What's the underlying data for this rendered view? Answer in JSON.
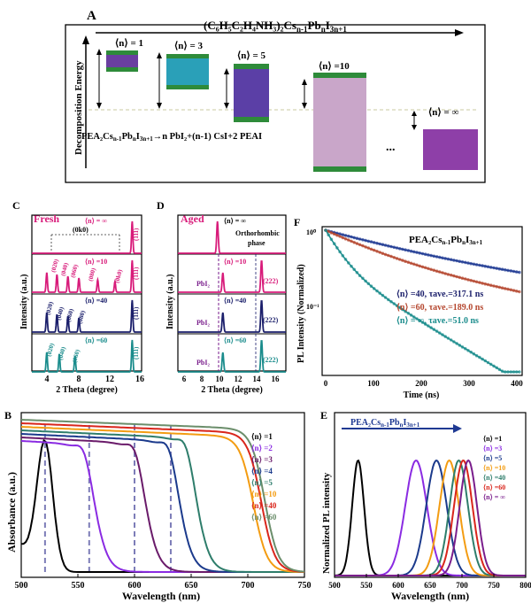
{
  "colors": {
    "black": "#000000",
    "blue": "#1f3a93",
    "navy": "#1b1f6b",
    "red": "#d9261c",
    "pink": "#d81b7a",
    "purple": "#7a1e8c",
    "teal": "#1a8c8c",
    "orange": "#f39c12",
    "green": "#2e8b57",
    "gray_green": "#6b8e6b",
    "dash": "#7d7db8"
  },
  "panelA": {
    "label": "A",
    "formula": "(C₆H₅C₂H₄NH₃)₂Cs",
    "formula_sub": "n-1",
    "formula_mid": "Pb",
    "formula_sub2": "n",
    "formula_tail": "I",
    "formula_sub3": "3n+1",
    "yaxis": "Decomposition Energy",
    "n_labels": [
      "⟨n⟩ = 1",
      "⟨n⟩ = 3",
      "⟨n⟩ = 5",
      "⟨n⟩ =10",
      "⟨n⟩ = ∞"
    ],
    "reaction_lhs": "PEA₂Cs",
    "reaction_text": "→n PbI₂+(n-1) CsI+2 PEAI",
    "dots": "...",
    "reaction_sub1": "n-1",
    "reaction_pb": "Pb",
    "reaction_sub2": "n",
    "reaction_i": "I",
    "reaction_sub3": "3n+1"
  },
  "panelC": {
    "label": "C",
    "title": "Fresh",
    "xlabel": "2 Theta (degree)",
    "ylabel": "Intensity (a.u.)",
    "xticks": [
      "4",
      "8",
      "12",
      "16"
    ],
    "row_labels": [
      "⟨n⟩ = ∞",
      "⟨n⟩ =10",
      "⟨n⟩ =40",
      "⟨n⟩ =60"
    ],
    "bracket": "(0k0)",
    "peak_label_111": "(111)",
    "peaks_n10": [
      "(020)",
      "(040)",
      "(060)",
      "(080)",
      "(0k0)"
    ],
    "peaks_n40": [
      "(020)",
      "(040)",
      "(060)",
      "(080)"
    ],
    "peaks_n60": [
      "(020)",
      "(040)",
      "(060)"
    ]
  },
  "panelD": {
    "label": "D",
    "title": "Aged",
    "xlabel": "2 Theta (degree)",
    "ylabel": "Intensity (a.u.)",
    "xticks": [
      "6",
      "8",
      "10",
      "12",
      "14",
      "16"
    ],
    "row_labels": [
      "⟨n⟩ = ∞",
      "⟨n⟩ =10",
      "⟨n⟩ =40",
      "⟨n⟩ =60"
    ],
    "phase_label": "Orthorhombic",
    "phase_label2": "phase",
    "pbi2": "PbI₂",
    "peak_222": "(222)"
  },
  "panelF": {
    "label": "F",
    "title": "PEA₂Cs",
    "title_sub": "n-1",
    "title_pb": "Pb",
    "title_sub2": "n",
    "title_i": "I",
    "title_sub3": "3n+1",
    "xlabel": "Time (ns)",
    "ylabel": "PL Intensity (Normalized)",
    "xticks": [
      "0",
      "100",
      "200",
      "300",
      "400"
    ],
    "yticks": [
      "10⁰",
      "10⁻¹"
    ],
    "legend": [
      "⟨n⟩ =40, τave.=317.1 ns",
      "⟨n⟩ =60, τave.=189.0 ns",
      "⟨n⟩ = ∞, τave.=51.0 ns"
    ]
  },
  "panelB": {
    "label": "B",
    "xlabel": "Wavelength (nm)",
    "ylabel": "Absorbance (a.u.)",
    "xticks": [
      "500",
      "550",
      "600",
      "650",
      "700",
      "750"
    ],
    "legend": [
      "⟨n⟩ =1",
      "⟨n⟩ =2",
      "⟨n⟩ =3",
      "⟨n⟩ =4",
      "⟨n⟩ =5",
      "⟨n⟩ =10",
      "⟨n⟩ =40",
      "⟨n⟩ =60"
    ]
  },
  "panelE": {
    "label": "E",
    "arrow_text": "PEA₂Cs",
    "arrow_sub": "n-1",
    "arrow_pb": "Pb",
    "arrow_sub2": "n",
    "arrow_i": "I",
    "arrow_sub3": "3n+1",
    "xlabel": "Wavelength (nm)",
    "ylabel": "Normalized PL intensity",
    "xticks": [
      "500",
      "550",
      "600",
      "650",
      "700",
      "750",
      "800"
    ],
    "legend": [
      "⟨n⟩ =1",
      "⟨n⟩ =3",
      "⟨n⟩ =5",
      "⟨n⟩ =10",
      "⟨n⟩ =40",
      "⟨n⟩ =60",
      "⟨n⟩ = ∞"
    ]
  },
  "chart_data": [
    {
      "type": "line",
      "panel": "B",
      "title": "",
      "xlabel": "Wavelength (nm)",
      "ylabel": "Absorbance (a.u.)",
      "xlim": [
        500,
        750
      ],
      "series": [
        {
          "name": "⟨n⟩ =1",
          "peak_nm": 521
        },
        {
          "name": "⟨n⟩ =2",
          "edge_nm": 565
        },
        {
          "name": "⟨n⟩ =3",
          "edge_nm": 610
        },
        {
          "name": "⟨n⟩ =4",
          "edge_nm": 640
        },
        {
          "name": "⟨n⟩ =5",
          "edge_nm": 655
        },
        {
          "name": "⟨n⟩ =10",
          "edge_nm": 705
        },
        {
          "name": "⟨n⟩ =40",
          "edge_nm": 712
        },
        {
          "name": "⟨n⟩ =60",
          "edge_nm": 715
        }
      ],
      "dashed_markers_nm": [
        521,
        560,
        600,
        632
      ]
    },
    {
      "type": "line",
      "panel": "E",
      "xlabel": "Wavelength (nm)",
      "ylabel": "Normalized PL intensity",
      "xlim": [
        500,
        800
      ],
      "series": [
        {
          "name": "⟨n⟩ =1",
          "peak_nm": 537,
          "fwhm_nm": 22
        },
        {
          "name": "⟨n⟩ =3",
          "peak_nm": 628,
          "fwhm_nm": 40
        },
        {
          "name": "⟨n⟩ =5",
          "peak_nm": 660,
          "fwhm_nm": 38
        },
        {
          "name": "⟨n⟩ =10",
          "peak_nm": 680,
          "fwhm_nm": 36
        },
        {
          "name": "⟨n⟩ =40",
          "peak_nm": 695,
          "fwhm_nm": 34
        },
        {
          "name": "⟨n⟩ =60",
          "peak_nm": 702,
          "fwhm_nm": 34
        },
        {
          "name": "⟨n⟩ = ∞",
          "peak_nm": 710,
          "fwhm_nm": 32
        }
      ]
    },
    {
      "type": "line",
      "panel": "F",
      "xlabel": "Time (ns)",
      "ylabel": "PL Intensity (Normalized)",
      "xlim": [
        0,
        410
      ],
      "yscale": "log",
      "series": [
        {
          "name": "⟨n⟩ =40",
          "tau_ave_ns": 317.1
        },
        {
          "name": "⟨n⟩ =60",
          "tau_ave_ns": 189.0
        },
        {
          "name": "⟨n⟩ = ∞",
          "tau_ave_ns": 51.0
        }
      ]
    },
    {
      "type": "line",
      "panel": "C",
      "xlabel": "2 Theta (degree)",
      "ylabel": "Intensity (a.u.)",
      "xlim": [
        2,
        16
      ],
      "series": [
        {
          "name": "⟨n⟩ = ∞",
          "peaks_deg": [
            14.8
          ]
        },
        {
          "name": "⟨n⟩ =10",
          "peaks_deg": [
            3.9,
            5.2,
            6.6,
            8.0,
            10.4,
            12.6,
            14.8
          ]
        },
        {
          "name": "⟨n⟩ =40",
          "peaks_deg": [
            3.9,
            5.2,
            6.6,
            8.0,
            14.8
          ]
        },
        {
          "name": "⟨n⟩ =60",
          "peaks_deg": [
            3.9,
            5.5,
            7.5,
            14.8
          ]
        }
      ]
    },
    {
      "type": "line",
      "panel": "D",
      "xlabel": "2 Theta (degree)",
      "ylabel": "Intensity (a.u.)",
      "xlim": [
        5,
        17
      ],
      "series": [
        {
          "name": "⟨n⟩ = ∞",
          "peaks_deg": [
            9.4
          ]
        },
        {
          "name": "⟨n⟩ =10",
          "peaks_deg": [
            10.0,
            14.3
          ]
        },
        {
          "name": "⟨n⟩ =40",
          "peaks_deg": [
            10.0,
            14.3
          ]
        },
        {
          "name": "⟨n⟩ =60",
          "peaks_deg": [
            10.0,
            14.3
          ]
        }
      ]
    }
  ]
}
